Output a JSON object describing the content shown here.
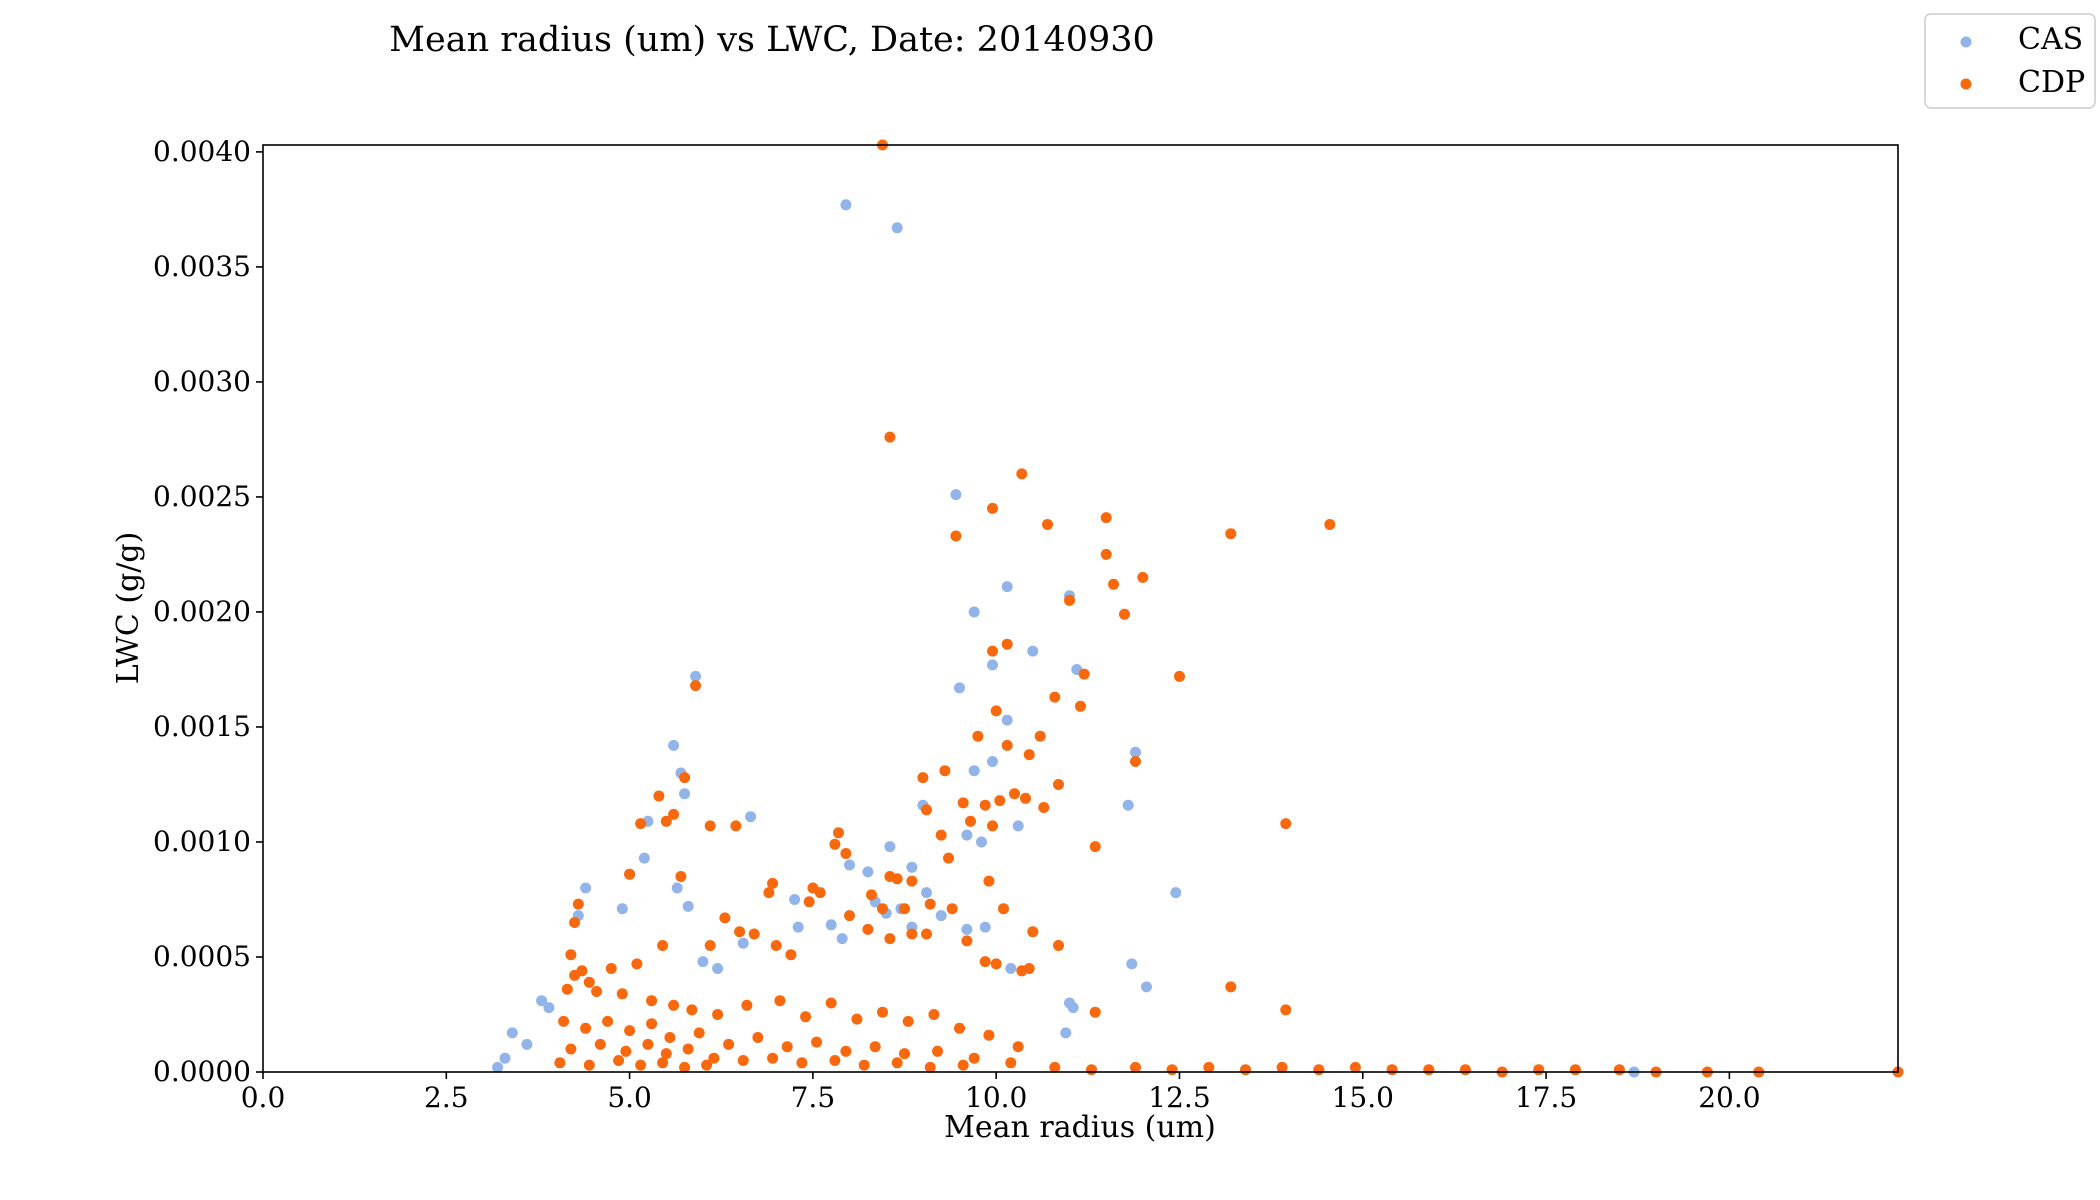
{
  "chart_data": {
    "type": "scatter",
    "title": "Mean radius (um) vs LWC, Date: 20140930",
    "xlabel": "Mean radius (um)",
    "ylabel": "LWC (g/g)",
    "xlim": [
      0,
      22.3
    ],
    "ylim": [
      0,
      0.00403
    ],
    "xticks": [
      "0.0",
      "2.5",
      "5.0",
      "7.5",
      "10.0",
      "12.5",
      "15.0",
      "17.5",
      "20.0"
    ],
    "xtick_values": [
      0,
      2.5,
      5,
      7.5,
      10,
      12.5,
      15,
      17.5,
      20
    ],
    "yticks": [
      "0.0000",
      "0.0005",
      "0.0010",
      "0.0015",
      "0.0020",
      "0.0025",
      "0.0030",
      "0.0035",
      "0.0040"
    ],
    "ytick_values": [
      0,
      0.0005,
      0.001,
      0.0015,
      0.002,
      0.0025,
      0.003,
      0.0035,
      0.004
    ],
    "grid": false,
    "legend_position": "top-right, outside plot",
    "series": [
      {
        "name": "CAS",
        "color": "#92b4e8",
        "points": [
          [
            7.95,
            0.00377
          ],
          [
            8.65,
            0.00367
          ],
          [
            9.45,
            0.00251
          ],
          [
            10.15,
            0.00211
          ],
          [
            11.0,
            0.00207
          ],
          [
            9.7,
            0.002
          ],
          [
            9.95,
            0.00177
          ],
          [
            10.5,
            0.00183
          ],
          [
            11.1,
            0.00175
          ],
          [
            9.5,
            0.00167
          ],
          [
            5.9,
            0.00172
          ],
          [
            5.6,
            0.00142
          ],
          [
            5.7,
            0.0013
          ],
          [
            5.75,
            0.00121
          ],
          [
            5.25,
            0.00109
          ],
          [
            5.2,
            0.00093
          ],
          [
            6.65,
            0.00111
          ],
          [
            10.15,
            0.00153
          ],
          [
            9.95,
            0.00135
          ],
          [
            9.7,
            0.00131
          ],
          [
            11.9,
            0.00139
          ],
          [
            11.8,
            0.00116
          ],
          [
            9.0,
            0.00116
          ],
          [
            9.6,
            0.00103
          ],
          [
            10.3,
            0.00107
          ],
          [
            9.8,
            0.001
          ],
          [
            8.55,
            0.00098
          ],
          [
            8.85,
            0.00089
          ],
          [
            8.0,
            0.0009
          ],
          [
            8.25,
            0.00087
          ],
          [
            12.45,
            0.00078
          ],
          [
            11.85,
            0.00047
          ],
          [
            12.05,
            0.00037
          ],
          [
            11.0,
            0.0003
          ],
          [
            11.05,
            0.00028
          ],
          [
            10.95,
            0.00017
          ],
          [
            4.4,
            0.0008
          ],
          [
            4.3,
            0.00068
          ],
          [
            4.9,
            0.00071
          ],
          [
            5.0,
            0.00086
          ],
          [
            5.65,
            0.0008
          ],
          [
            5.8,
            0.00072
          ],
          [
            6.0,
            0.00048
          ],
          [
            6.2,
            0.00045
          ],
          [
            6.55,
            0.00056
          ],
          [
            7.25,
            0.00075
          ],
          [
            7.3,
            0.00063
          ],
          [
            7.75,
            0.00064
          ],
          [
            7.9,
            0.00058
          ],
          [
            8.35,
            0.00074
          ],
          [
            8.5,
            0.00069
          ],
          [
            8.7,
            0.00071
          ],
          [
            8.85,
            0.00063
          ],
          [
            9.05,
            0.00078
          ],
          [
            9.25,
            0.00068
          ],
          [
            9.6,
            0.00062
          ],
          [
            9.85,
            0.00063
          ],
          [
            10.2,
            0.00045
          ],
          [
            3.8,
            0.00031
          ],
          [
            3.9,
            0.00028
          ],
          [
            3.4,
            0.00017
          ],
          [
            3.6,
            0.00012
          ],
          [
            3.3,
            6e-05
          ],
          [
            3.2,
            2e-05
          ],
          [
            18.7,
            0.0
          ]
        ]
      },
      {
        "name": "CDP",
        "color": "#f8680d",
        "points": [
          [
            8.45,
            0.00403
          ],
          [
            8.55,
            0.00276
          ],
          [
            10.35,
            0.0026
          ],
          [
            9.45,
            0.00233
          ],
          [
            9.95,
            0.00245
          ],
          [
            10.7,
            0.00238
          ],
          [
            11.5,
            0.00241
          ],
          [
            11.5,
            0.00225
          ],
          [
            11.6,
            0.00212
          ],
          [
            11.75,
            0.00199
          ],
          [
            12.0,
            0.00215
          ],
          [
            13.2,
            0.00234
          ],
          [
            14.55,
            0.00238
          ],
          [
            11.0,
            0.00205
          ],
          [
            12.5,
            0.00172
          ],
          [
            11.2,
            0.00173
          ],
          [
            11.15,
            0.00159
          ],
          [
            10.8,
            0.00163
          ],
          [
            10.15,
            0.00186
          ],
          [
            9.95,
            0.00183
          ],
          [
            10.0,
            0.00157
          ],
          [
            10.15,
            0.00142
          ],
          [
            9.75,
            0.00146
          ],
          [
            10.45,
            0.00138
          ],
          [
            10.6,
            0.00146
          ],
          [
            10.85,
            0.00125
          ],
          [
            10.65,
            0.00115
          ],
          [
            11.9,
            0.00135
          ],
          [
            13.95,
            0.00108
          ],
          [
            11.35,
            0.00098
          ],
          [
            5.9,
            0.00168
          ],
          [
            5.75,
            0.00128
          ],
          [
            5.6,
            0.00112
          ],
          [
            5.5,
            0.00109
          ],
          [
            5.15,
            0.00108
          ],
          [
            5.4,
            0.0012
          ],
          [
            6.1,
            0.00107
          ],
          [
            6.45,
            0.00107
          ],
          [
            5.0,
            0.00086
          ],
          [
            5.7,
            0.00085
          ],
          [
            4.3,
            0.00073
          ],
          [
            4.25,
            0.00065
          ],
          [
            4.2,
            0.00051
          ],
          [
            9.0,
            0.00128
          ],
          [
            9.3,
            0.00131
          ],
          [
            9.25,
            0.00103
          ],
          [
            9.35,
            0.00093
          ],
          [
            9.05,
            0.00114
          ],
          [
            9.55,
            0.00117
          ],
          [
            9.65,
            0.00109
          ],
          [
            9.85,
            0.00116
          ],
          [
            10.05,
            0.00118
          ],
          [
            10.25,
            0.00121
          ],
          [
            10.4,
            0.00119
          ],
          [
            9.95,
            0.00107
          ],
          [
            9.9,
            0.00083
          ],
          [
            8.55,
            0.00085
          ],
          [
            8.65,
            0.00084
          ],
          [
            8.85,
            0.00083
          ],
          [
            7.85,
            0.00104
          ],
          [
            7.8,
            0.00099
          ],
          [
            7.95,
            0.00095
          ],
          [
            6.95,
            0.00082
          ],
          [
            6.9,
            0.00078
          ],
          [
            7.5,
            0.0008
          ],
          [
            7.6,
            0.00078
          ],
          [
            7.45,
            0.00074
          ],
          [
            8.3,
            0.00077
          ],
          [
            8.45,
            0.00071
          ],
          [
            8.75,
            0.00071
          ],
          [
            9.1,
            0.00073
          ],
          [
            9.4,
            0.00071
          ],
          [
            10.1,
            0.00071
          ],
          [
            10.5,
            0.00061
          ],
          [
            10.85,
            0.00055
          ],
          [
            10.45,
            0.00045
          ],
          [
            10.35,
            0.00044
          ],
          [
            11.35,
            0.00026
          ],
          [
            13.2,
            0.00037
          ],
          [
            13.95,
            0.00027
          ],
          [
            6.3,
            0.00067
          ],
          [
            6.5,
            0.00061
          ],
          [
            6.1,
            0.00055
          ],
          [
            6.7,
            0.0006
          ],
          [
            7.0,
            0.00055
          ],
          [
            7.2,
            0.00051
          ],
          [
            8.0,
            0.00068
          ],
          [
            8.25,
            0.00062
          ],
          [
            8.55,
            0.00058
          ],
          [
            8.85,
            0.0006
          ],
          [
            9.05,
            0.0006
          ],
          [
            9.6,
            0.00057
          ],
          [
            9.85,
            0.00048
          ],
          [
            10.0,
            0.00047
          ],
          [
            5.45,
            0.00055
          ],
          [
            5.1,
            0.00047
          ],
          [
            4.75,
            0.00045
          ],
          [
            4.35,
            0.00044
          ],
          [
            4.25,
            0.00042
          ],
          [
            4.45,
            0.00039
          ],
          [
            4.15,
            0.00036
          ],
          [
            4.55,
            0.00035
          ],
          [
            4.9,
            0.00034
          ],
          [
            5.3,
            0.00031
          ],
          [
            5.6,
            0.00029
          ],
          [
            5.85,
            0.00027
          ],
          [
            6.2,
            0.00025
          ],
          [
            6.6,
            0.00029
          ],
          [
            7.05,
            0.00031
          ],
          [
            7.4,
            0.00024
          ],
          [
            7.75,
            0.0003
          ],
          [
            8.1,
            0.00023
          ],
          [
            8.45,
            0.00026
          ],
          [
            8.8,
            0.00022
          ],
          [
            9.15,
            0.00025
          ],
          [
            9.5,
            0.00019
          ],
          [
            9.9,
            0.00016
          ],
          [
            10.3,
            0.00011
          ],
          [
            4.1,
            0.00022
          ],
          [
            4.4,
            0.00019
          ],
          [
            4.7,
            0.00022
          ],
          [
            5.0,
            0.00018
          ],
          [
            5.3,
            0.00021
          ],
          [
            5.55,
            0.00015
          ],
          [
            5.95,
            0.00017
          ],
          [
            6.35,
            0.00012
          ],
          [
            6.75,
            0.00015
          ],
          [
            7.15,
            0.00011
          ],
          [
            7.55,
            0.00013
          ],
          [
            7.95,
            9e-05
          ],
          [
            8.35,
            0.00011
          ],
          [
            8.75,
            8e-05
          ],
          [
            9.2,
            9e-05
          ],
          [
            9.7,
            6e-05
          ],
          [
            10.2,
            4e-05
          ],
          [
            4.2,
            0.0001
          ],
          [
            4.6,
            0.00012
          ],
          [
            4.95,
            9e-05
          ],
          [
            5.25,
            0.00012
          ],
          [
            5.5,
            8e-05
          ],
          [
            5.8,
            0.0001
          ],
          [
            6.15,
            6e-05
          ],
          [
            6.55,
            5e-05
          ],
          [
            6.95,
            6e-05
          ],
          [
            7.35,
            4e-05
          ],
          [
            7.8,
            5e-05
          ],
          [
            8.2,
            3e-05
          ],
          [
            8.65,
            4e-05
          ],
          [
            9.1,
            2e-05
          ],
          [
            9.55,
            3e-05
          ],
          [
            4.05,
            4e-05
          ],
          [
            4.45,
            3e-05
          ],
          [
            4.85,
            5e-05
          ],
          [
            5.15,
            3e-05
          ],
          [
            5.45,
            4e-05
          ],
          [
            5.75,
            2e-05
          ],
          [
            6.05,
            3e-05
          ],
          [
            10.8,
            2e-05
          ],
          [
            11.3,
            1e-05
          ],
          [
            11.9,
            2e-05
          ],
          [
            12.4,
            1e-05
          ],
          [
            12.9,
            2e-05
          ],
          [
            13.4,
            1e-05
          ],
          [
            13.9,
            2e-05
          ],
          [
            14.4,
            1e-05
          ],
          [
            14.9,
            2e-05
          ],
          [
            15.4,
            1e-05
          ],
          [
            15.9,
            1e-05
          ],
          [
            16.4,
            1e-05
          ],
          [
            16.9,
            0.0
          ],
          [
            17.4,
            1e-05
          ],
          [
            17.9,
            1e-05
          ],
          [
            18.5,
            1e-05
          ],
          [
            19.0,
            0.0
          ],
          [
            19.7,
            0.0
          ],
          [
            20.4,
            0.0
          ],
          [
            22.3,
            0.0
          ]
        ]
      }
    ]
  }
}
